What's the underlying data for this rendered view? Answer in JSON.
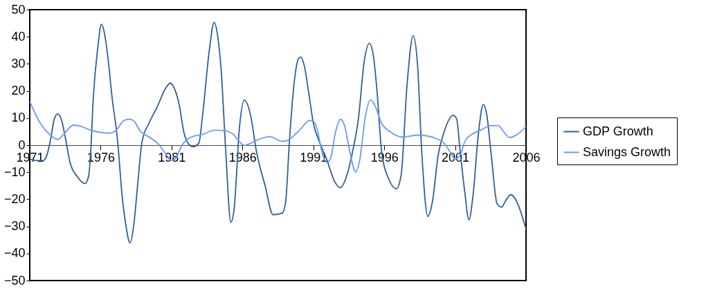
{
  "chart_data": {
    "type": "line",
    "xlim": [
      1971,
      2006
    ],
    "xticks": [
      1971,
      1976,
      1981,
      1986,
      1991,
      1996,
      2001,
      2006
    ],
    "ylim": [
      -50,
      50
    ],
    "yticks": [
      -50,
      -40,
      -30,
      -20,
      -10,
      0,
      10,
      20,
      30,
      40,
      50
    ],
    "grid": false,
    "legend": "right",
    "marker": "none",
    "line_style": "solid",
    "series": [
      {
        "name": "GDP Growth",
        "color": "#2f5f98",
        "x": [
          1971,
          1971.54,
          1971.95,
          1972.2,
          1972.44,
          1972.74,
          1972.97,
          1973.26,
          1973.5,
          1973.84,
          1974.33,
          1974.9,
          1975.15,
          1975.3,
          1975.48,
          1975.8,
          1976.05,
          1976.3,
          1976.54,
          1976.79,
          1977.2,
          1977.52,
          1977.77,
          1978.07,
          1978.34,
          1978.59,
          1978.92,
          1979.41,
          1979.98,
          1980.56,
          1980.92,
          1981.21,
          1981.54,
          1981.87,
          1982.2,
          1982.52,
          1982.93,
          1983.18,
          1983.67,
          1984.0,
          1984.25,
          1984.5,
          1984.82,
          1985.18,
          1985.4,
          1985.8,
          1986.13,
          1986.62,
          1986.95,
          1987.6,
          1988.16,
          1988.81,
          1989.05,
          1989.3,
          1989.62,
          1989.95,
          1990.11,
          1990.36,
          1990.68,
          1991.0,
          1991.42,
          1991.9,
          1992.56,
          1992.91,
          1993.29,
          1993.78,
          1994.18,
          1994.59,
          1994.95,
          1995.24,
          1995.49,
          1995.81,
          1996.3,
          1996.87,
          1997.2,
          1997.6,
          1998.04,
          1998.34,
          1998.66,
          1999.07,
          1999.4,
          1999.8,
          2000.21,
          2000.86,
          2001.1,
          2001.35,
          2001.68,
          2001.97,
          2002.25,
          2002.65,
          2002.98,
          2003.22,
          2003.55,
          2003.96,
          2004.28,
          2004.53,
          2004.93,
          2005.26,
          2006.0
        ],
        "values": [
          -5.1,
          -5.7,
          -5.7,
          -3.8,
          1.3,
          9.8,
          11.5,
          8.9,
          3.0,
          -6.4,
          -11.5,
          -14.2,
          -11.5,
          -2.1,
          17.4,
          36.1,
          44.6,
          40.4,
          31.0,
          18.3,
          1.3,
          -19.1,
          -29.3,
          -36.1,
          -29.3,
          -15.7,
          1.3,
          8.1,
          14.0,
          20.8,
          22.9,
          20.8,
          14.9,
          4.7,
          0.4,
          -0.6,
          0.8,
          10.6,
          35.3,
          45.3,
          40.4,
          27.6,
          -2.1,
          -28.5,
          -24.2,
          7.2,
          16.6,
          9.8,
          -1.3,
          -15.0,
          -25.7,
          -25.1,
          -20.8,
          0.4,
          21.7,
          31.9,
          32.5,
          29.3,
          19.1,
          8.1,
          1.3,
          -4.7,
          -14.0,
          -15.7,
          -12.3,
          -2.1,
          9.8,
          31.0,
          37.6,
          32.7,
          20.0,
          -2.1,
          -12.3,
          -16.1,
          -10.6,
          21.7,
          40.4,
          30.2,
          -3.8,
          -26.3,
          -20.8,
          -3.8,
          4.7,
          11.0,
          9.8,
          -2.1,
          -17.4,
          -27.6,
          -19.1,
          4.7,
          15.0,
          11.5,
          -3.8,
          -21.7,
          -22.9,
          -20.8,
          -18.3,
          -20.0,
          -31.0
        ]
      },
      {
        "name": "Savings Growth",
        "color": "#6699ff",
        "x": [
          1971,
          1971.74,
          1972.44,
          1972.97,
          1973.5,
          1974.08,
          1974.49,
          1975.3,
          1976.62,
          1977.1,
          1977.6,
          1978.0,
          1978.34,
          1978.75,
          1979.57,
          1980.07,
          1980.56,
          1980.97,
          1981.3,
          1981.7,
          1982.2,
          1982.52,
          1983.02,
          1984.08,
          1984.66,
          1985.31,
          1985.72,
          1986.13,
          1986.46,
          1986.95,
          1987.93,
          1988.81,
          1989.3,
          1989.95,
          1990.76,
          1991.0,
          1991.29,
          1991.58,
          1991.99,
          1992.23,
          1992.56,
          1992.91,
          1993.2,
          1993.53,
          1993.99,
          1994.27,
          1994.67,
          1995.03,
          1995.32,
          1995.81,
          1996.46,
          1997.28,
          1998.42,
          1999.72,
          2000.21,
          2000.7,
          2000.99,
          2001.35,
          2001.68,
          2002.25,
          2002.82,
          2003.47,
          2004.04,
          2004.45,
          2004.85,
          2005.34,
          2006.0
        ],
        "values": [
          16.1,
          8.1,
          3.8,
          2.1,
          4.7,
          7.4,
          7.1,
          5.5,
          4.4,
          5.5,
          8.9,
          9.6,
          8.9,
          5.5,
          2.5,
          0.4,
          -3.0,
          -5.7,
          -4.8,
          -0.4,
          2.5,
          3.2,
          3.7,
          5.5,
          5.4,
          4.2,
          1.7,
          -0.1,
          0.4,
          1.7,
          3.1,
          1.4,
          2.1,
          5.1,
          9.1,
          8.8,
          5.5,
          -2.1,
          -6.4,
          -4.7,
          4.7,
          9.5,
          7.2,
          -1.3,
          -9.9,
          -5.5,
          10.6,
          16.7,
          14.9,
          8.1,
          4.8,
          3.0,
          3.7,
          2.3,
          0.8,
          -3.0,
          -5.1,
          -3.8,
          1.3,
          4.2,
          5.5,
          7.2,
          7.2,
          4.7,
          2.8,
          3.8,
          6.8
        ]
      }
    ]
  }
}
